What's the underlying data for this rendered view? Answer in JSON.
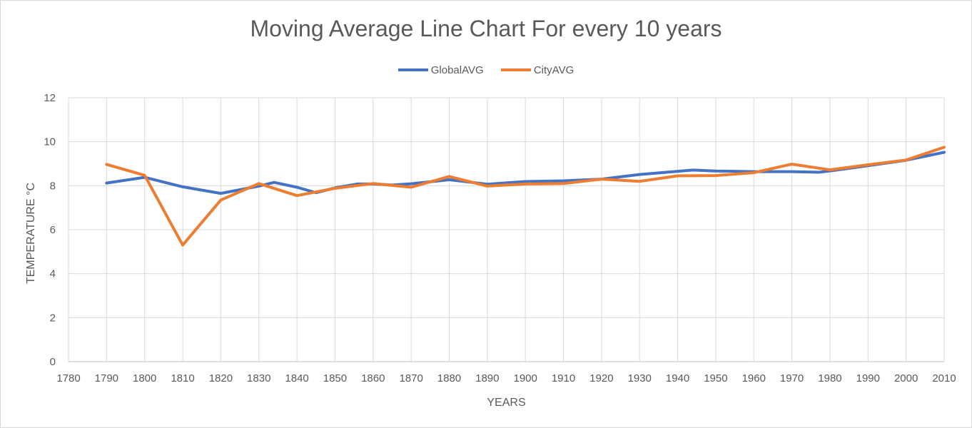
{
  "chart_data": {
    "type": "line",
    "title": "Moving Average Line Chart For every 10 years",
    "xlabel": "YEARS",
    "ylabel": "TEMPERATURE °C",
    "xlim": [
      1780,
      2010
    ],
    "ylim": [
      0,
      12
    ],
    "x_ticks": [
      "1780",
      "1790",
      "1800",
      "1810",
      "1820",
      "1830",
      "1840",
      "1850",
      "1860",
      "1870",
      "1880",
      "1890",
      "1900",
      "1910",
      "1920",
      "1930",
      "1940",
      "1950",
      "1960",
      "1970",
      "1980",
      "1990",
      "2000",
      "2010"
    ],
    "y_ticks": [
      "0",
      "2",
      "4",
      "6",
      "8",
      "10",
      "12"
    ],
    "grid": true,
    "legend_position": "top",
    "series": [
      {
        "name": "GlobalAVG",
        "color": "#4472c4",
        "points": [
          [
            1790,
            8.12
          ],
          [
            1800,
            8.38
          ],
          [
            1810,
            7.95
          ],
          [
            1820,
            7.65
          ],
          [
            1830,
            7.98
          ],
          [
            1834,
            8.15
          ],
          [
            1840,
            7.93
          ],
          [
            1845,
            7.68
          ],
          [
            1850,
            7.9
          ],
          [
            1856,
            8.08
          ],
          [
            1860,
            8.08
          ],
          [
            1865,
            8.03
          ],
          [
            1870,
            8.09
          ],
          [
            1880,
            8.27
          ],
          [
            1890,
            8.07
          ],
          [
            1900,
            8.19
          ],
          [
            1910,
            8.22
          ],
          [
            1920,
            8.3
          ],
          [
            1930,
            8.51
          ],
          [
            1944,
            8.71
          ],
          [
            1950,
            8.67
          ],
          [
            1960,
            8.64
          ],
          [
            1970,
            8.64
          ],
          [
            1977,
            8.61
          ],
          [
            1980,
            8.67
          ],
          [
            1990,
            8.91
          ],
          [
            2000,
            9.16
          ],
          [
            2010,
            9.52
          ]
        ]
      },
      {
        "name": "CityAVG",
        "color": "#ed7d31",
        "points": [
          [
            1790,
            8.97
          ],
          [
            1800,
            8.47
          ],
          [
            1810,
            5.3
          ],
          [
            1820,
            7.35
          ],
          [
            1830,
            8.1
          ],
          [
            1840,
            7.55
          ],
          [
            1850,
            7.88
          ],
          [
            1860,
            8.1
          ],
          [
            1870,
            7.93
          ],
          [
            1880,
            8.42
          ],
          [
            1890,
            7.98
          ],
          [
            1900,
            8.08
          ],
          [
            1910,
            8.1
          ],
          [
            1920,
            8.3
          ],
          [
            1930,
            8.2
          ],
          [
            1940,
            8.45
          ],
          [
            1950,
            8.46
          ],
          [
            1960,
            8.59
          ],
          [
            1970,
            8.98
          ],
          [
            1980,
            8.72
          ],
          [
            1990,
            8.95
          ],
          [
            2000,
            9.17
          ],
          [
            2010,
            9.75
          ]
        ]
      }
    ]
  }
}
